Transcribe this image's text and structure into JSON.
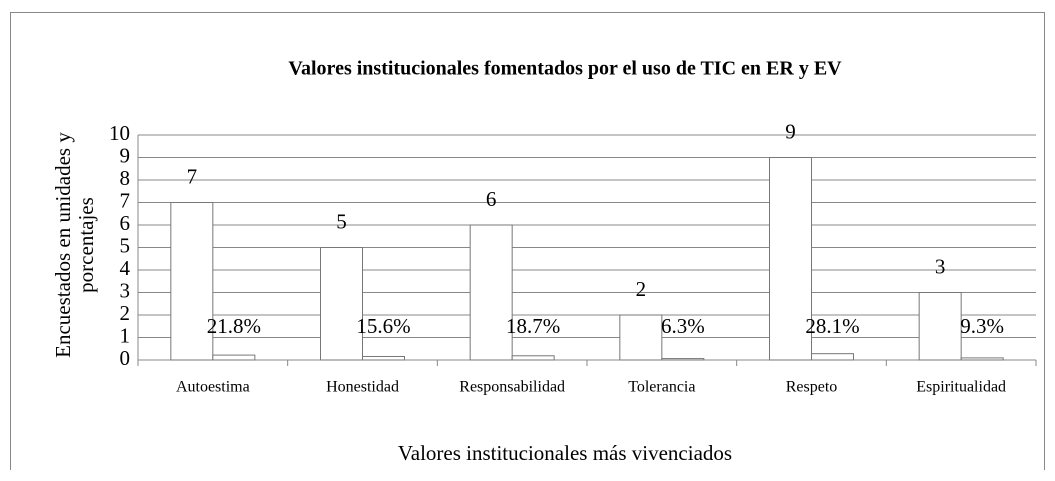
{
  "chart_data": {
    "type": "bar",
    "title": "Valores institucionales fomentados por el uso de TIC en ER y EV",
    "x_label": "Valores institucionales más vivenciados",
    "y_label": [
      "Encuestados en unidades y",
      "porcentajes"
    ],
    "categories": [
      "Autoestima",
      "Honestidad",
      "Responsabilidad",
      "Tolerancia",
      "Respeto",
      "Espiritualidad"
    ],
    "series": [
      {
        "color": "#ffffff",
        "values": [
          7,
          5,
          6,
          2,
          9,
          3
        ]
      },
      {
        "color": "#ffffff",
        "values": [
          0.218,
          0.156,
          0.187,
          0.063,
          0.281,
          0.093
        ],
        "value_labels": [
          "21.8%",
          "15.6%",
          "18.7%",
          "6.3%",
          "28.1%",
          "9.3%"
        ]
      }
    ],
    "ylim": [
      0,
      10
    ],
    "yticks": [
      0,
      1,
      2,
      3,
      4,
      5,
      6,
      7,
      8,
      9,
      10
    ],
    "grid": true
  }
}
